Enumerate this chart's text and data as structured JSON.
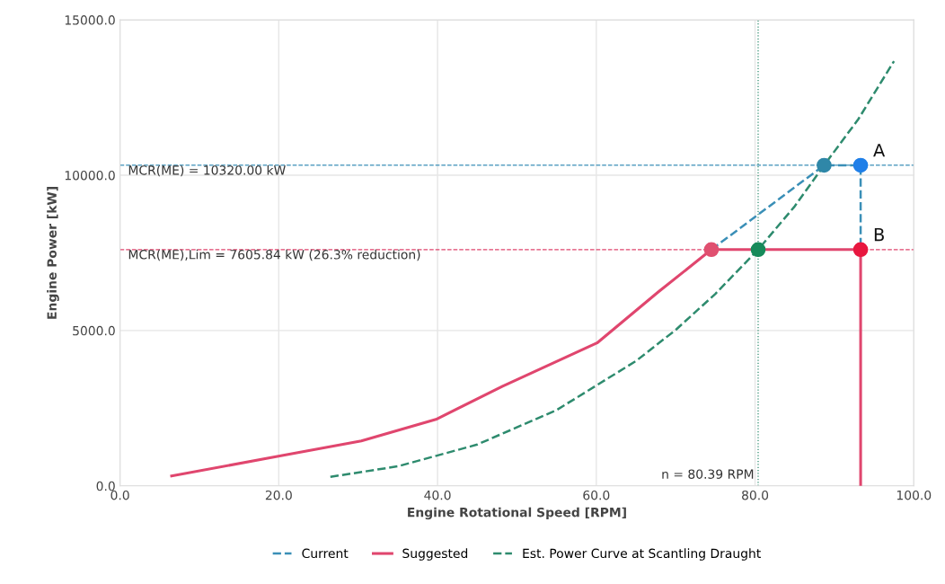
{
  "chart_data": {
    "type": "line",
    "xlabel": "Engine Rotational Speed [RPM]",
    "ylabel": "Engine Power [kW]",
    "xlim": [
      0,
      100
    ],
    "ylim": [
      0,
      15000
    ],
    "xticks": [
      {
        "value": 0,
        "label": "0.0"
      },
      {
        "value": 20,
        "label": "20.0"
      },
      {
        "value": 40,
        "label": "40.0"
      },
      {
        "value": 60,
        "label": "60.0"
      },
      {
        "value": 80,
        "label": "80.0"
      },
      {
        "value": 100,
        "label": "100.0"
      }
    ],
    "yticks": [
      {
        "value": 0,
        "label": "0.0"
      },
      {
        "value": 5000,
        "label": "5000.0"
      },
      {
        "value": 10000,
        "label": "10000.0"
      },
      {
        "value": 15000,
        "label": "15000.0"
      }
    ],
    "grid": true,
    "legend": "bottom",
    "series": [
      {
        "name": "Current",
        "color": "#3a8fb7",
        "line_style": "dashed",
        "x": [
          74.5,
          88.7,
          93.3,
          93.3
        ],
        "values": [
          7605.84,
          10320,
          10320,
          7605.84
        ]
      },
      {
        "name": "Suggested",
        "color": "#e0466e",
        "line_style": "solid",
        "x": [
          6.5,
          30.4,
          39.8,
          48.2,
          60.1,
          67.8,
          74.5,
          93.3,
          93.3
        ],
        "values": [
          320,
          1450,
          2140,
          3210,
          4600,
          6240,
          7605.84,
          7605.84,
          0
        ]
      },
      {
        "name": "Est. Power Curve at Scantling Draught",
        "color": "#2e8b6e",
        "line_style": "dashed",
        "x": [
          26.5,
          35,
          45,
          55,
          65,
          70,
          75,
          80.39,
          85,
          88.7,
          93,
          97.5
        ],
        "values": [
          290,
          630,
          1330,
          2440,
          4020,
          5020,
          6180,
          7605.84,
          9000,
          10320,
          11800,
          13670
        ]
      },
      {
        "type": "scatter",
        "color": "#2f87a8",
        "x": [
          88.7
        ],
        "values": [
          10320
        ]
      },
      {
        "type": "scatter",
        "color": "#1f7fe8",
        "x": [
          93.3
        ],
        "values": [
          10320
        ]
      },
      {
        "type": "scatter",
        "color": "#e05070",
        "x": [
          74.5
        ],
        "values": [
          7605.84
        ]
      },
      {
        "type": "scatter",
        "color": "#178a5a",
        "x": [
          80.39
        ],
        "values": [
          7605.84
        ]
      },
      {
        "type": "scatter",
        "color": "#e8173f",
        "x": [
          93.3
        ],
        "values": [
          7605.84
        ]
      }
    ],
    "ref_lines": [
      {
        "axis": "y",
        "value": 10320,
        "label": "MCR(ME) = 10320.00 kW",
        "color": "#3a8fb7",
        "line_style": "dashed"
      },
      {
        "axis": "y",
        "value": 7605.84,
        "label": "MCR(ME),Lim = 7605.84 kW (26.3% reduction)",
        "color": "#e0466e",
        "line_style": "dashed"
      },
      {
        "axis": "x",
        "value": 80.39,
        "label": "n = 80.39 RPM",
        "color": "#2e8b6e",
        "line_style": "dotted"
      }
    ],
    "annotations": [
      {
        "text": "A",
        "x": 93.3,
        "y": 10320
      },
      {
        "text": "B",
        "x": 93.3,
        "y": 7605.84
      }
    ]
  }
}
